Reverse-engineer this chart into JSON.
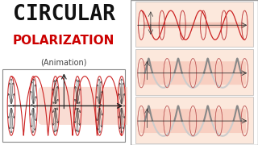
{
  "title_line1": "CIRCULAR",
  "title_line2": "POLARIZATION",
  "title_line3": "(Animation)",
  "title_color1": "#111111",
  "title_color2": "#cc0000",
  "title_color3": "#444444",
  "bg_left": "#ffffff",
  "bg_right": "#f5d8c8",
  "border_color": "#888888",
  "helix_color_red": "#cc2222",
  "helix_color_dark": "#333333",
  "spoke_color": "#222222",
  "tube_color_pink": "#f0b0a0",
  "tube_color_gray": "#bbbbbb",
  "circle_outline": "#cc2222",
  "gray_circle": "#aaaaaa"
}
